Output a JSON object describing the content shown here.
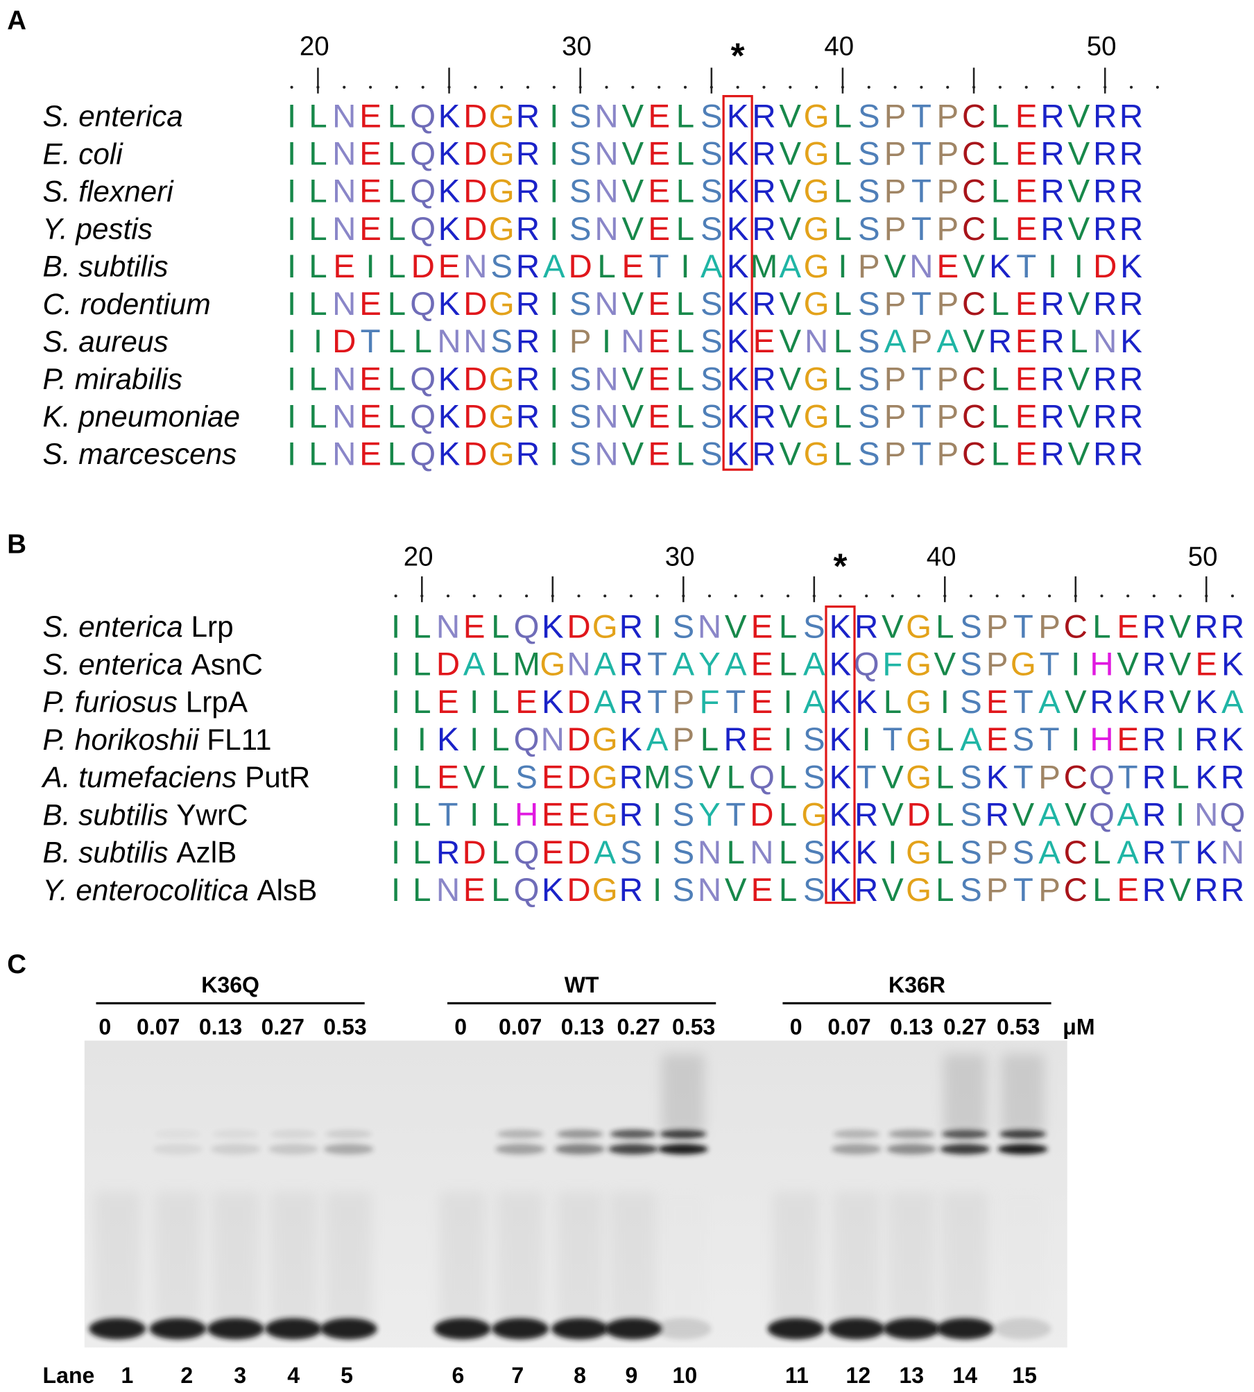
{
  "panels": [
    {
      "label": "A",
      "ticks": [
        20,
        30,
        40,
        50
      ],
      "marker": "*",
      "sequences": [
        {
          "species": "S. enterica",
          "sequence": "ILNELQKDGRISNVELSKRVGLSPTPCLERVRR"
        },
        {
          "species": "E. coli",
          "sequence": "ILNELQKDGRISNVELSKRVGLSPTPCLERVRR"
        },
        {
          "species": "S. flexneri",
          "sequence": "ILNELQKDGRISNVELSKRVGLSPTPCLERVRR"
        },
        {
          "species": "Y. pestis",
          "sequence": "ILNELQKDGRISNVELSKRVGLSPTPCLERVRR"
        },
        {
          "species": "B. subtilis",
          "sequence": "ILEILDENSRADLETIAKMAGIPVNEVKTIIDK"
        },
        {
          "species": "C. rodentium",
          "sequence": "ILNELQKDGRISNVELSKRVGLSPTPCLERVRR"
        },
        {
          "species": "S. aureus",
          "sequence": "IIDTLLNNSRIPINELSKEVNLSAPAVRERLNK"
        },
        {
          "species": "P. mirabilis",
          "sequence": "ILNELQKDGRISNVELSKRVGLSPTPCLERVRR"
        },
        {
          "species": "K. pneumoniae",
          "sequence": "ILNELQKDGRISNVELSKRVGLSPTPCLERVRR"
        },
        {
          "species": "S. marcescens",
          "sequence": "ILNELQKDGRISNVELSKRVGLSPTPCLERVRR"
        }
      ]
    },
    {
      "label": "B",
      "ticks": [
        20,
        30,
        40,
        50
      ],
      "marker": "*",
      "sequences": [
        {
          "species": "S. enterica",
          "protein": "Lrp",
          "sequence": "ILNELQKDGRISNVELSKRVGLSPTPCLERVRR"
        },
        {
          "species": "S. enterica",
          "protein": "AsnC",
          "sequence": "ILDALMGNARTAYAELAKQFGVSPGTIHVRVEK"
        },
        {
          "species": "P. furiosus",
          "protein": "LrpA",
          "sequence": "ILEILEKDARTPFTEIAKKLGISETAVRKRVKA"
        },
        {
          "species": "P. horikoshii",
          "protein": "FL11",
          "sequence": "IIKILQNDGKAPLREISKITGLAESTIHERIRK"
        },
        {
          "species": "A. tumefaciens",
          "protein": "PutR",
          "sequence": "ILEVLSEDGRMSVLQLSKTVGLSKTPCQTRLKR"
        },
        {
          "species": "B. subtilis",
          "protein": "YwrC",
          "sequence": "ILTILHEEGRISYTDLGKRVDLSRVAVQARINQ"
        },
        {
          "species": "B. subtilis",
          "protein": "AzlB",
          "sequence": "ILRDLQEDASISNLNLSKKIGLSPSACLARTKN"
        },
        {
          "species": "Y. enterocolitica",
          "protein": "AlsB",
          "sequence": "ILNELQKDGRISNVELSKRVGLSPTPCLERVRR"
        }
      ]
    }
  ],
  "residue_colors": {
    "I": "#17884a",
    "L": "#17884a",
    "V": "#17884a",
    "M": "#17884a",
    "N": "#8a86c8",
    "Q": "#6f6cb8",
    "E": "#e0161b",
    "D": "#e0161b",
    "K": "#1a22c8",
    "R": "#1a22c8",
    "G": "#e3a21a",
    "S": "#4f7fb8",
    "T": "#4f7fb8",
    "P": "#a08565",
    "C": "#a8141a",
    "A": "#1fb5a5",
    "F": "#1fb5a5",
    "Y": "#1fb5a5",
    "H": "#e01ae0"
  },
  "gel": {
    "label": "C",
    "groups": [
      {
        "name": "K36Q",
        "concentrations": [
          0,
          0.07,
          0.13,
          0.27,
          0.53
        ]
      },
      {
        "name": "WT",
        "concentrations": [
          0,
          0.07,
          0.13,
          0.27,
          0.53
        ]
      },
      {
        "name": "K36R",
        "concentrations": [
          0,
          0.07,
          0.13,
          0.27,
          0.53
        ]
      }
    ],
    "unit": "μM",
    "lane_label": "Lane",
    "lanes": [
      1,
      2,
      3,
      4,
      5,
      6,
      7,
      8,
      9,
      10,
      11,
      12,
      13,
      14,
      15
    ]
  }
}
